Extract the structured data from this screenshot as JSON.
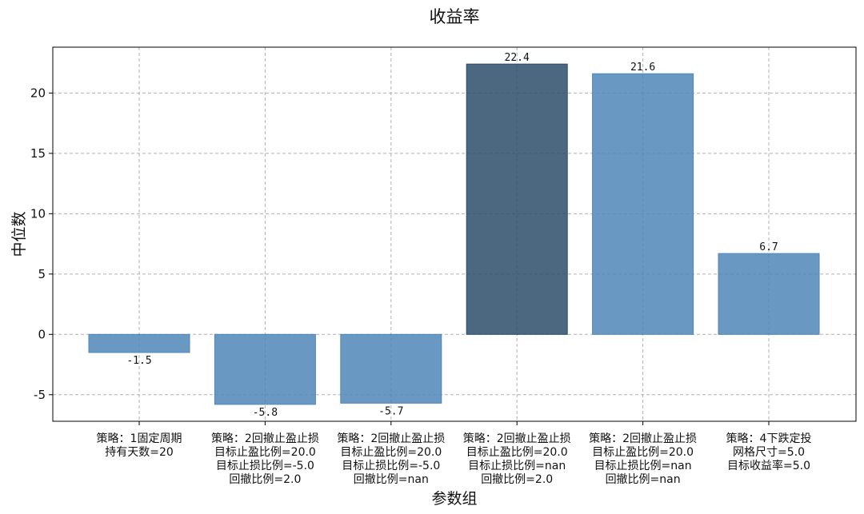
{
  "chart_data": {
    "type": "bar",
    "title": "收益率",
    "xlabel": "参数组",
    "ylabel": "中位数",
    "ylim": [
      -7.2,
      23.8
    ],
    "yticks": [
      -5,
      0,
      5,
      10,
      15,
      20
    ],
    "grid": true,
    "categories": [
      [
        "策略：1固定周期",
        "持有天数=20"
      ],
      [
        "策略：2回撤止盈止损",
        "目标止盈比例=20.0",
        "目标止损比例=-5.0",
        "回撤比例=2.0"
      ],
      [
        "策略：2回撤止盈止损",
        "目标止盈比例=20.0",
        "目标止损比例=-5.0",
        "回撤比例=nan"
      ],
      [
        "策略：2回撤止盈止损",
        "目标止盈比例=20.0",
        "目标止损比例=nan",
        "回撤比例=2.0"
      ],
      [
        "策略：2回撤止盈止损",
        "目标止盈比例=20.0",
        "目标止损比例=nan",
        "回撤比例=nan"
      ],
      [
        "策略：4下跌定投",
        "网格尺寸=5.0",
        "目标收益率=5.0"
      ]
    ],
    "values": [
      -1.5,
      -5.8,
      -5.7,
      22.4,
      21.6,
      6.7
    ],
    "value_labels": [
      "-1.5",
      "-5.8",
      "-5.7",
      "22.4",
      "21.6",
      "6.7"
    ],
    "bar_color": "#4f87b9",
    "highlight_color": "#2c4d6a",
    "highlight_index": 3
  }
}
